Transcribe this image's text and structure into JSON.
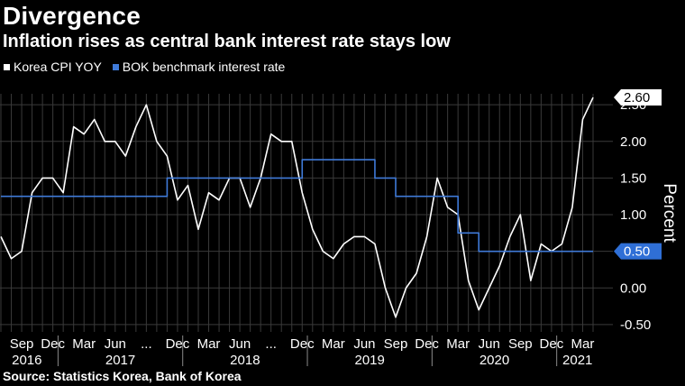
{
  "header": {
    "title": "Divergence",
    "subtitle": "Inflation rises as central bank interest rate stays low"
  },
  "footer": {
    "source": "Source: Statistics Korea, Bank of Korea"
  },
  "colors": {
    "background": "#000000",
    "cpi_line": "#ffffff",
    "rate_line": "#3f7ad8",
    "grid": "#3a3a3a",
    "callout_cpi_bg": "#ffffff",
    "callout_rate_bg": "#2f6fd6"
  },
  "chart_data": {
    "type": "line",
    "title": "Divergence",
    "subtitle": "Inflation rises as central bank interest rate stays low",
    "ylabel": "Percent",
    "ylim": [
      -0.6,
      2.65
    ],
    "yticks": [
      -0.5,
      0.0,
      0.5,
      1.0,
      1.5,
      2.0,
      2.5
    ],
    "ytick_labels": [
      "-0.50",
      "0.00",
      "0.50",
      "1.00",
      "1.50",
      "2.00",
      "2.50"
    ],
    "x_start": "2016-07",
    "x": [
      "2016-07",
      "2016-08",
      "2016-09",
      "2016-10",
      "2016-11",
      "2016-12",
      "2017-01",
      "2017-02",
      "2017-03",
      "2017-04",
      "2017-05",
      "2017-06",
      "2017-07",
      "2017-08",
      "2017-09",
      "2017-10",
      "2017-11",
      "2017-12",
      "2018-01",
      "2018-02",
      "2018-03",
      "2018-04",
      "2018-05",
      "2018-06",
      "2018-07",
      "2018-08",
      "2018-09",
      "2018-10",
      "2018-11",
      "2018-12",
      "2019-01",
      "2019-02",
      "2019-03",
      "2019-04",
      "2019-05",
      "2019-06",
      "2019-07",
      "2019-08",
      "2019-09",
      "2019-10",
      "2019-11",
      "2019-12",
      "2020-01",
      "2020-02",
      "2020-03",
      "2020-04",
      "2020-05",
      "2020-06",
      "2020-07",
      "2020-08",
      "2020-09",
      "2020-10",
      "2020-11",
      "2020-12",
      "2021-01",
      "2021-02",
      "2021-03",
      "2021-04"
    ],
    "x_tick_labels": [
      "Sep",
      "Dec",
      "Mar",
      "Jun",
      "...",
      "Dec",
      "Mar",
      "Jun",
      "...",
      "Dec",
      "Mar",
      "Jun",
      "Sep",
      "Dec",
      "Mar",
      "Jun",
      "Sep",
      "Dec",
      "Mar"
    ],
    "year_labels": [
      "2016",
      "2017",
      "2018",
      "2019",
      "2020",
      "2021"
    ],
    "legend_position": "top-left",
    "grid": true,
    "series": [
      {
        "name": "Korea CPI YOY",
        "color": "#ffffff",
        "values": [
          0.7,
          0.4,
          0.5,
          1.3,
          1.5,
          1.5,
          1.3,
          2.2,
          2.1,
          2.3,
          2.0,
          2.0,
          1.8,
          2.2,
          2.5,
          2.0,
          1.8,
          1.2,
          1.4,
          0.8,
          1.3,
          1.2,
          1.5,
          1.5,
          1.1,
          1.5,
          2.1,
          2.0,
          2.0,
          1.3,
          0.8,
          0.5,
          0.4,
          0.6,
          0.7,
          0.7,
          0.6,
          0.0,
          -0.4,
          0.0,
          0.2,
          0.7,
          1.5,
          1.1,
          1.0,
          0.1,
          -0.3,
          0.0,
          0.3,
          0.7,
          1.0,
          0.1,
          0.6,
          0.5,
          0.6,
          1.1,
          2.3,
          2.6
        ],
        "last_value_label": "2.60"
      },
      {
        "name": "BOK benchmark interest rate",
        "color": "#3f7ad8",
        "values": [
          1.25,
          1.25,
          1.25,
          1.25,
          1.25,
          1.25,
          1.25,
          1.25,
          1.25,
          1.25,
          1.25,
          1.25,
          1.25,
          1.25,
          1.25,
          1.25,
          1.5,
          1.5,
          1.5,
          1.5,
          1.5,
          1.5,
          1.5,
          1.5,
          1.5,
          1.5,
          1.5,
          1.5,
          1.5,
          1.75,
          1.75,
          1.75,
          1.75,
          1.75,
          1.75,
          1.75,
          1.5,
          1.5,
          1.25,
          1.25,
          1.25,
          1.25,
          1.25,
          1.25,
          0.75,
          0.75,
          0.5,
          0.5,
          0.5,
          0.5,
          0.5,
          0.5,
          0.5,
          0.5,
          0.5,
          0.5,
          0.5,
          0.5
        ],
        "last_value_label": "0.50"
      }
    ]
  }
}
